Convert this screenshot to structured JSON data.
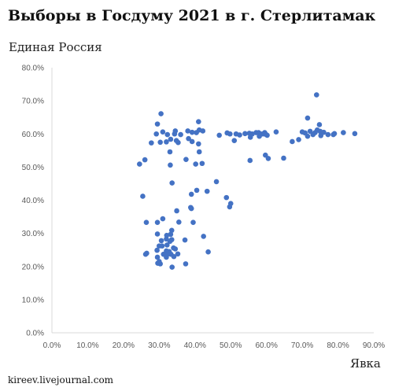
{
  "title": "Выборы в Госдуму 2021 в г. Стерлитамак",
  "ylabel": "Единая Россия",
  "xlabel": "Явка",
  "source": "kireev.livejournal.com",
  "colors": {
    "points": "#4472C4",
    "axis": "#d9d9d9",
    "tick_text": "#595959"
  },
  "chart_data": {
    "type": "scatter",
    "title": "Выборы в Госдуму 2021 в г. Стерлитамак",
    "xlabel": "Явка",
    "ylabel": "Единая Россия",
    "xlim": [
      0,
      0.9
    ],
    "ylim": [
      0,
      0.8
    ],
    "x_ticks": [
      "0.0%",
      "10.0%",
      "20.0%",
      "30.0%",
      "40.0%",
      "50.0%",
      "60.0%",
      "70.0%",
      "80.0%",
      "90.0%"
    ],
    "y_ticks": [
      "0.0%",
      "10.0%",
      "20.0%",
      "30.0%",
      "40.0%",
      "50.0%",
      "60.0%",
      "70.0%",
      "80.0%"
    ],
    "grid": false,
    "points": [
      [
        0.305,
        0.661
      ],
      [
        0.295,
        0.63
      ],
      [
        0.292,
        0.6
      ],
      [
        0.31,
        0.606
      ],
      [
        0.323,
        0.598
      ],
      [
        0.32,
        0.576
      ],
      [
        0.332,
        0.584
      ],
      [
        0.303,
        0.575
      ],
      [
        0.278,
        0.573
      ],
      [
        0.33,
        0.546
      ],
      [
        0.331,
        0.506
      ],
      [
        0.245,
        0.509
      ],
      [
        0.26,
        0.522
      ],
      [
        0.375,
        0.523
      ],
      [
        0.343,
        0.6
      ],
      [
        0.348,
        0.58
      ],
      [
        0.353,
        0.574
      ],
      [
        0.36,
        0.598
      ],
      [
        0.345,
        0.609
      ],
      [
        0.38,
        0.609
      ],
      [
        0.392,
        0.605
      ],
      [
        0.382,
        0.586
      ],
      [
        0.392,
        0.577
      ],
      [
        0.404,
        0.604
      ],
      [
        0.41,
        0.637
      ],
      [
        0.412,
        0.612
      ],
      [
        0.422,
        0.609
      ],
      [
        0.41,
        0.57
      ],
      [
        0.412,
        0.546
      ],
      [
        0.402,
        0.509
      ],
      [
        0.42,
        0.511
      ],
      [
        0.405,
        0.43
      ],
      [
        0.39,
        0.418
      ],
      [
        0.434,
        0.427
      ],
      [
        0.46,
        0.456
      ],
      [
        0.488,
        0.408
      ],
      [
        0.497,
        0.38
      ],
      [
        0.5,
        0.39
      ],
      [
        0.39,
        0.375
      ],
      [
        0.388,
        0.378
      ],
      [
        0.395,
        0.333
      ],
      [
        0.355,
        0.334
      ],
      [
        0.349,
        0.368
      ],
      [
        0.336,
        0.452
      ],
      [
        0.254,
        0.412
      ],
      [
        0.264,
        0.333
      ],
      [
        0.295,
        0.333
      ],
      [
        0.31,
        0.344
      ],
      [
        0.332,
        0.297
      ],
      [
        0.335,
        0.309
      ],
      [
        0.321,
        0.294
      ],
      [
        0.306,
        0.278
      ],
      [
        0.295,
        0.298
      ],
      [
        0.3,
        0.262
      ],
      [
        0.308,
        0.262
      ],
      [
        0.32,
        0.283
      ],
      [
        0.322,
        0.265
      ],
      [
        0.33,
        0.276
      ],
      [
        0.335,
        0.281
      ],
      [
        0.328,
        0.245
      ],
      [
        0.333,
        0.237
      ],
      [
        0.34,
        0.256
      ],
      [
        0.32,
        0.247
      ],
      [
        0.325,
        0.238
      ],
      [
        0.345,
        0.253
      ],
      [
        0.352,
        0.238
      ],
      [
        0.341,
        0.23
      ],
      [
        0.312,
        0.237
      ],
      [
        0.294,
        0.249
      ],
      [
        0.265,
        0.24
      ],
      [
        0.262,
        0.237
      ],
      [
        0.295,
        0.228
      ],
      [
        0.3,
        0.215
      ],
      [
        0.296,
        0.21
      ],
      [
        0.303,
        0.208
      ],
      [
        0.336,
        0.198
      ],
      [
        0.32,
        0.228
      ],
      [
        0.374,
        0.208
      ],
      [
        0.372,
        0.28
      ],
      [
        0.424,
        0.291
      ],
      [
        0.437,
        0.244
      ],
      [
        0.468,
        0.596
      ],
      [
        0.49,
        0.603
      ],
      [
        0.498,
        0.6
      ],
      [
        0.51,
        0.58
      ],
      [
        0.515,
        0.6
      ],
      [
        0.525,
        0.597
      ],
      [
        0.54,
        0.601
      ],
      [
        0.552,
        0.602
      ],
      [
        0.555,
        0.59
      ],
      [
        0.56,
        0.6
      ],
      [
        0.571,
        0.604
      ],
      [
        0.578,
        0.604
      ],
      [
        0.58,
        0.593
      ],
      [
        0.584,
        0.6
      ],
      [
        0.59,
        0.6
      ],
      [
        0.595,
        0.604
      ],
      [
        0.599,
        0.598
      ],
      [
        0.602,
        0.596
      ],
      [
        0.597,
        0.536
      ],
      [
        0.605,
        0.526
      ],
      [
        0.554,
        0.52
      ],
      [
        0.627,
        0.606
      ],
      [
        0.648,
        0.527
      ],
      [
        0.672,
        0.577
      ],
      [
        0.69,
        0.583
      ],
      [
        0.7,
        0.606
      ],
      [
        0.708,
        0.603
      ],
      [
        0.715,
        0.593
      ],
      [
        0.715,
        0.648
      ],
      [
        0.722,
        0.608
      ],
      [
        0.73,
        0.598
      ],
      [
        0.736,
        0.604
      ],
      [
        0.74,
        0.718
      ],
      [
        0.742,
        0.612
      ],
      [
        0.748,
        0.628
      ],
      [
        0.75,
        0.608
      ],
      [
        0.752,
        0.595
      ],
      [
        0.76,
        0.605
      ],
      [
        0.772,
        0.598
      ],
      [
        0.787,
        0.598
      ],
      [
        0.79,
        0.601
      ],
      [
        0.815,
        0.604
      ],
      [
        0.847,
        0.601
      ]
    ]
  }
}
